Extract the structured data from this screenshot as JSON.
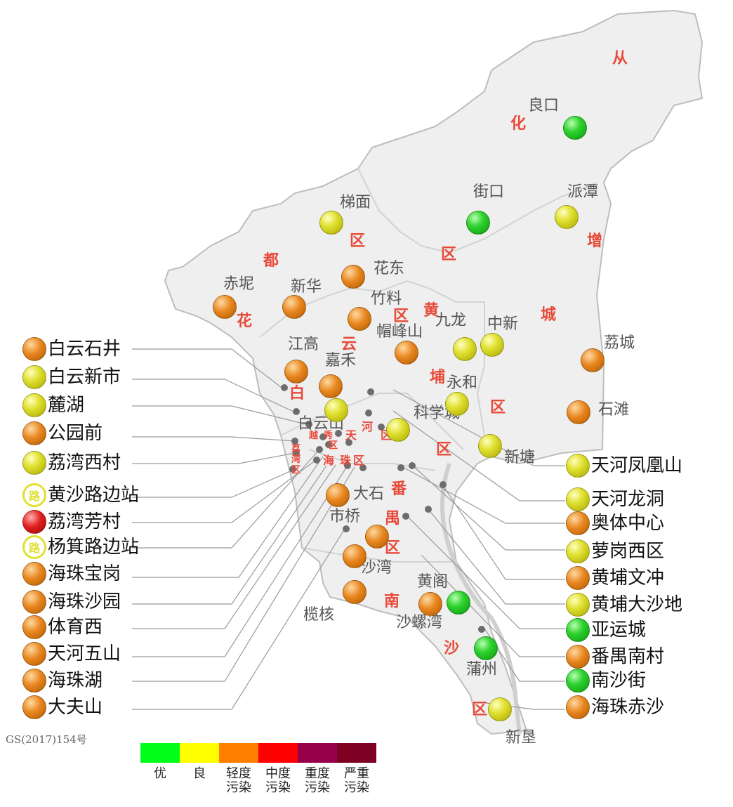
{
  "place_labels": [
    "良口",
    "街口",
    "派潭",
    "梯面",
    "花东",
    "赤坭",
    "新华",
    "竹料",
    "帽峰山",
    "九龙",
    "中新",
    "荔城",
    "江高",
    "嘉禾",
    "永和",
    "白云山",
    "科学城",
    "石滩",
    "新塘",
    "大石",
    "市桥",
    "沙湾",
    "黄阁",
    "沙螺湾",
    "榄核",
    "蒲州",
    "新垦"
  ],
  "district_labels": [
    "从",
    "化",
    "增",
    "城",
    "区",
    "区",
    "都",
    "花",
    "白",
    "云",
    "区",
    "黄",
    "埔",
    "区",
    "区",
    "番",
    "禺",
    "区",
    "南",
    "沙",
    "区",
    "越",
    "秀",
    "区",
    "荔",
    "湾",
    "区",
    "天",
    "河",
    "区",
    "海",
    "珠",
    "区"
  ],
  "left_stations": [
    {
      "name": "白云石井",
      "level": "orange"
    },
    {
      "name": "白云新市",
      "level": "yellow"
    },
    {
      "name": "麓湖",
      "level": "yellow"
    },
    {
      "name": "公园前",
      "level": "orange"
    },
    {
      "name": "荔湾西村",
      "level": "yellow"
    },
    {
      "name": "黄沙路边站",
      "level": "road"
    },
    {
      "name": "荔湾芳村",
      "level": "red"
    },
    {
      "name": "杨箕路边站",
      "level": "road"
    },
    {
      "name": "海珠宝岗",
      "level": "orange"
    },
    {
      "name": "海珠沙园",
      "level": "orange"
    },
    {
      "name": "体育西",
      "level": "orange"
    },
    {
      "name": "天河五山",
      "level": "orange"
    },
    {
      "name": "海珠湖",
      "level": "orange"
    },
    {
      "name": "大夫山",
      "level": "orange"
    }
  ],
  "right_stations": [
    {
      "name": "天河凤凰山",
      "level": "yellow"
    },
    {
      "name": "天河龙洞",
      "level": "yellow"
    },
    {
      "name": "奥体中心",
      "level": "orange"
    },
    {
      "name": "萝岗西区",
      "level": "yellow"
    },
    {
      "name": "黄埔文冲",
      "level": "orange"
    },
    {
      "name": "黄埔大沙地",
      "level": "yellow"
    },
    {
      "name": "亚运城",
      "level": "green"
    },
    {
      "name": "番禺南村",
      "level": "orange"
    },
    {
      "name": "南沙街",
      "level": "green"
    },
    {
      "name": "海珠赤沙",
      "level": "orange"
    }
  ],
  "map_dots": [
    "green",
    "green",
    "yellow",
    "yellow",
    "orange",
    "orange",
    "orange",
    "orange",
    "orange",
    "yellow",
    "yellow",
    "orange",
    "orange",
    "yellow",
    "yellow",
    "yellow",
    "orange",
    "orange",
    "yellow",
    "orange",
    "orange",
    "orange",
    "orange",
    "orange",
    "green",
    "green",
    "yellow",
    "green",
    "yellow"
  ],
  "road_glyph": "路",
  "map_code": "GS(2017)154号",
  "scale": [
    {
      "label": "优",
      "color": "#00ff1a"
    },
    {
      "label": "良",
      "color": "#ffff00"
    },
    {
      "label": "轻度\n污染",
      "color": "#ff7e00"
    },
    {
      "label": "中度\n污染",
      "color": "#ff0000"
    },
    {
      "label": "重度\n污染",
      "color": "#99004c"
    },
    {
      "label": "严重\n污染",
      "color": "#7e0023"
    }
  ]
}
